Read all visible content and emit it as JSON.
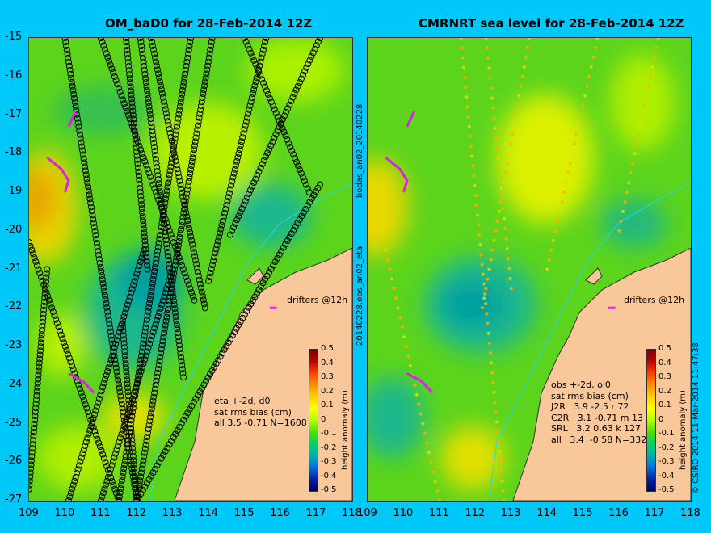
{
  "left_panel": {
    "title": "OM_baD0 for 28-Feb-2014 12Z",
    "stats_lines": [
      "eta +-2d, d0",
      "sat rms bias (cm)",
      "all 3.5 -0.71 N=1608"
    ],
    "drifter_label": "drifters @12h"
  },
  "right_panel": {
    "title": "CMRNRT sea level  for 28-Feb-2014 12Z",
    "stats_lines": [
      "obs +-2d, oi0",
      "sat rms bias (cm)",
      "J2R   3.9 -2.5 r 72",
      "C2R   3.1 -0.71 m 13",
      "SRL   3.2 0.63 k 127",
      "all   3.4  -0.58 N=332"
    ],
    "drifter_label": "drifters @12h"
  },
  "side_labels": {
    "middle_top": "bodas_an02_20140228",
    "middle_bottom": "20140228.obs_an02_eta",
    "right_edge": "© CSIRO 2014   11-Mar-2014 11:47:38"
  },
  "colorbar": {
    "label": "height anomaly (m)",
    "ticks": [
      "0.5",
      "0.4",
      "0.3",
      "0.2",
      "0.1",
      "0",
      "-0.1",
      "-0.2",
      "-0.3",
      "-0.4",
      "-0.5"
    ],
    "colors": [
      "#7a0000",
      "#c00000",
      "#ff4000",
      "#ff9000",
      "#ffd000",
      "#ffff00",
      "#b0ff00",
      "#50e000",
      "#00d070",
      "#00b0b0",
      "#0070e0",
      "#0020a0",
      "#000060"
    ]
  },
  "axes": {
    "x_ticks_left": [
      "109",
      "110",
      "111",
      "112",
      "113",
      "114",
      "115",
      "116",
      "117",
      "118"
    ],
    "x_ticks_right": [
      "109",
      "110",
      "111",
      "112",
      "113",
      "114",
      "115",
      "116",
      "117",
      "118"
    ],
    "y_ticks": [
      "-15",
      "-16",
      "-17",
      "-18",
      "-19",
      "-20",
      "-21",
      "-22",
      "-23",
      "-24",
      "-25",
      "-26",
      "-27"
    ],
    "lon_range": [
      109,
      118
    ],
    "lat_range": [
      -27,
      -15
    ]
  },
  "colors": {
    "ocean_base": "#5cd41c",
    "land": "#f9c89a",
    "background": "#00c8f8",
    "drifter": "#e020e0",
    "track": "#000000"
  },
  "tracks_left": [
    [
      [
        110.0,
        -15.0
      ],
      [
        112.0,
        -27.0
      ]
    ],
    [
      [
        111.0,
        -15.0
      ],
      [
        113.6,
        -21.8
      ]
    ],
    [
      [
        112.1,
        -15.0
      ],
      [
        113.3,
        -23.8
      ]
    ],
    [
      [
        112.4,
        -15.0
      ],
      [
        113.9,
        -22.0
      ]
    ],
    [
      [
        113.5,
        -15.0
      ],
      [
        111.5,
        -27.0
      ]
    ],
    [
      [
        114.1,
        -15.0
      ],
      [
        112.0,
        -27.0
      ]
    ],
    [
      [
        115.6,
        -15.0
      ],
      [
        114.0,
        -21.3
      ]
    ],
    [
      [
        115.0,
        -15.0
      ],
      [
        116.8,
        -19.0
      ]
    ],
    [
      [
        117.1,
        -15.0
      ],
      [
        114.6,
        -20.1
      ]
    ],
    [
      [
        117.1,
        -18.8
      ],
      [
        112.0,
        -27.0
      ]
    ],
    [
      [
        109.0,
        -20.3
      ],
      [
        111.5,
        -27.0
      ]
    ],
    [
      [
        111.7,
        -15.0
      ],
      [
        112.3,
        -21.0
      ]
    ],
    [
      [
        112.2,
        -20.5
      ],
      [
        110.1,
        -27.0
      ]
    ],
    [
      [
        113.0,
        -21.0
      ],
      [
        111.0,
        -27.0
      ]
    ],
    [
      [
        111.6,
        -22.4
      ],
      [
        112.0,
        -27.0
      ]
    ],
    [
      [
        109.5,
        -21.0
      ],
      [
        109.0,
        -26.7
      ]
    ]
  ],
  "drifters": [
    [
      [
        110.3,
        -16.9
      ],
      [
        110.1,
        -17.3
      ]
    ],
    [
      [
        109.5,
        -18.1
      ],
      [
        109.9,
        -18.4
      ],
      [
        110.1,
        -18.7
      ],
      [
        110.0,
        -19.0
      ]
    ],
    [
      [
        110.1,
        -23.7
      ],
      [
        110.5,
        -23.9
      ],
      [
        110.8,
        -24.2
      ]
    ],
    [
      [
        115.7,
        -22.0
      ],
      [
        115.9,
        -22.0
      ]
    ]
  ]
}
